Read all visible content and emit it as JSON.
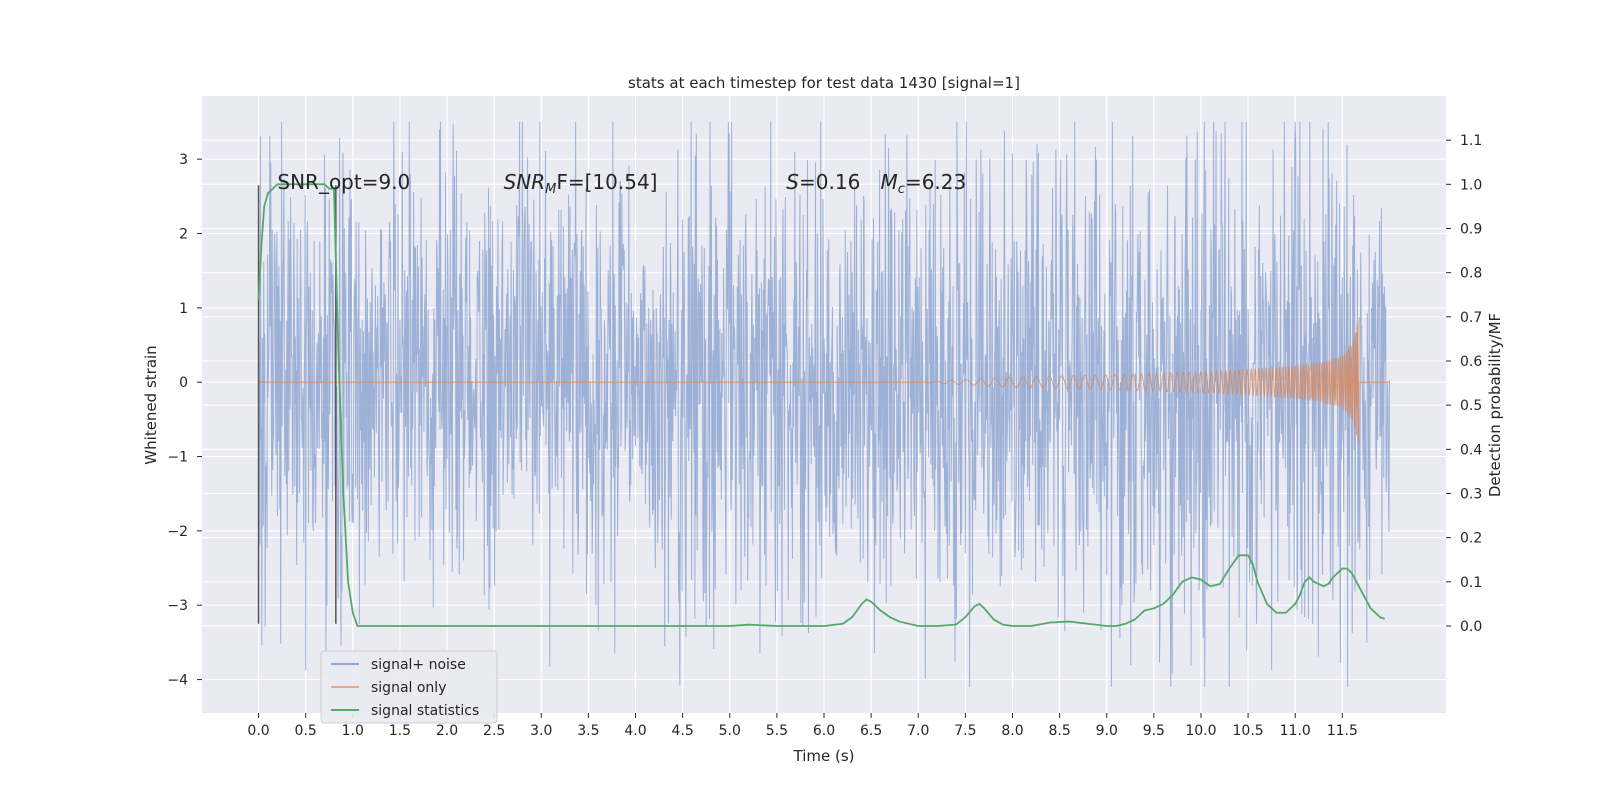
{
  "chart_data": {
    "type": "line",
    "title": "stats at each timestep for test data 1430 [signal=1]",
    "xlabel": "Time (s)",
    "ylabel": "Whitened strain",
    "y2label": "Detection probability/MF",
    "xlim": [
      -0.6,
      12.6
    ],
    "ylim": [
      -4.45,
      3.85
    ],
    "y2lim": [
      -0.197,
      1.2
    ],
    "x_ticks": [
      0.0,
      0.5,
      1.0,
      1.5,
      2.0,
      2.5,
      3.0,
      3.5,
      4.0,
      4.5,
      5.0,
      5.5,
      6.0,
      6.5,
      7.0,
      7.5,
      8.0,
      8.5,
      9.0,
      9.5,
      10.0,
      10.5,
      11.0,
      11.5
    ],
    "x_tick_labels": [
      "0.0",
      "0.5",
      "1.0",
      "1.5",
      "2.0",
      "2.5",
      "3.0",
      "3.5",
      "4.0",
      "4.5",
      "5.0",
      "5.5",
      "6.0",
      "6.5",
      "7.0",
      "7.5",
      "8.0",
      "8.5",
      "9.0",
      "9.5",
      "10.0",
      "10.5",
      "11.0",
      "11.5"
    ],
    "y_ticks": [
      -4,
      -3,
      -2,
      -1,
      0,
      1,
      2,
      3
    ],
    "y_tick_labels": [
      "−4",
      "−3",
      "−2",
      "−1",
      "0",
      "1",
      "2",
      "3"
    ],
    "y2_ticks": [
      0.0,
      0.1,
      0.2,
      0.3,
      0.4,
      0.5,
      0.6,
      0.7,
      0.8,
      0.9,
      1.0,
      1.1
    ],
    "y2_tick_labels": [
      "0.0",
      "0.1",
      "0.2",
      "0.3",
      "0.4",
      "0.5",
      "0.6",
      "0.7",
      "0.8",
      "0.9",
      "1.0",
      "1.1"
    ],
    "grid": true,
    "legend_position": "lower-left",
    "series": [
      {
        "name": "signal+ noise",
        "color": "#8fa6d1",
        "kind": "noise",
        "x_range": [
          0.0,
          12.0
        ],
        "y_range_approx": [
          -4.1,
          3.5
        ],
        "envelope_approx": {
          "x": [
            0,
            1,
            2,
            3,
            4,
            5,
            6,
            7,
            8,
            9,
            10,
            11,
            12
          ],
          "upper": [
            2.9,
            2.6,
            2.8,
            2.5,
            2.7,
            2.9,
            3.0,
            2.7,
            2.9,
            3.2,
            3.1,
            3.2,
            2.4
          ],
          "lower": [
            -2.5,
            -2.8,
            -2.7,
            -2.5,
            -2.9,
            -2.8,
            -2.9,
            -2.6,
            -2.8,
            -3.1,
            -3.4,
            -3.5,
            -2.5
          ]
        }
      },
      {
        "name": "signal only",
        "color": "#dd8452",
        "kind": "chirp",
        "x_start": 7.0,
        "x_end": 11.68,
        "envelope_approx": {
          "x": [
            7.0,
            8.0,
            9.0,
            10.0,
            10.5,
            11.0,
            11.3,
            11.5,
            11.6,
            11.68
          ],
          "amplitude": [
            0.0,
            0.07,
            0.1,
            0.14,
            0.17,
            0.22,
            0.27,
            0.35,
            0.5,
            0.88
          ]
        }
      },
      {
        "name": "signal statistics",
        "color": "#55a868",
        "axis": "right",
        "x": [
          0.0,
          0.03,
          0.06,
          0.1,
          0.15,
          0.2,
          0.3,
          0.4,
          0.5,
          0.6,
          0.7,
          0.75,
          0.8,
          0.85,
          0.9,
          0.95,
          1.0,
          1.05,
          1.1,
          1.2,
          1.5,
          2.0,
          2.2,
          2.5,
          2.8,
          3.0,
          3.5,
          4.0,
          4.5,
          5.0,
          5.2,
          5.5,
          6.0,
          6.2,
          6.3,
          6.4,
          6.45,
          6.5,
          6.6,
          6.7,
          6.8,
          7.0,
          7.2,
          7.4,
          7.5,
          7.6,
          7.65,
          7.7,
          7.8,
          7.9,
          8.0,
          8.2,
          8.4,
          8.6,
          8.8,
          9.0,
          9.1,
          9.2,
          9.3,
          9.4,
          9.5,
          9.6,
          9.7,
          9.8,
          9.9,
          10.0,
          10.1,
          10.2,
          10.3,
          10.4,
          10.45,
          10.5,
          10.55,
          10.6,
          10.7,
          10.8,
          10.9,
          11.0,
          11.05,
          11.1,
          11.15,
          11.2,
          11.3,
          11.35,
          11.4,
          11.5,
          11.55,
          11.6,
          11.7,
          11.8,
          11.9,
          11.95
        ],
        "values": [
          0.74,
          0.86,
          0.95,
          0.98,
          0.99,
          1.0,
          1.0,
          1.0,
          1.0,
          1.0,
          1.0,
          0.99,
          0.99,
          0.6,
          0.3,
          0.1,
          0.03,
          0.0,
          0.0,
          0.0,
          0.0,
          0.0,
          0.0,
          0.0,
          0.0,
          0.0,
          0.0,
          0.0,
          0.0,
          0.0,
          0.003,
          0.0,
          0.0,
          0.005,
          0.02,
          0.05,
          0.06,
          0.055,
          0.035,
          0.02,
          0.01,
          0.0,
          0.0,
          0.003,
          0.02,
          0.045,
          0.05,
          0.04,
          0.015,
          0.003,
          0.0,
          0.0,
          0.008,
          0.01,
          0.005,
          0.0,
          0.0,
          0.005,
          0.015,
          0.035,
          0.04,
          0.05,
          0.07,
          0.1,
          0.11,
          0.105,
          0.09,
          0.095,
          0.13,
          0.16,
          0.16,
          0.16,
          0.14,
          0.1,
          0.05,
          0.03,
          0.03,
          0.05,
          0.07,
          0.1,
          0.11,
          0.1,
          0.09,
          0.095,
          0.11,
          0.13,
          0.13,
          0.12,
          0.08,
          0.04,
          0.02,
          0.016
        ]
      }
    ],
    "vertical_lines": [
      {
        "x": 0.0,
        "y_from": -3.25,
        "y_to": 2.65,
        "color": "#555555"
      },
      {
        "x": 0.82,
        "y_from": -3.25,
        "y_to": 2.65,
        "color": "#555555"
      }
    ],
    "annotations": [
      {
        "text": "SNR_opt=9.0",
        "x": 0.2,
        "y": 2.6
      },
      {
        "text": "SNR",
        "sub": "M",
        "after": "F=[10.54]",
        "italic": true,
        "x": 2.6,
        "y": 2.6
      },
      {
        "text": "S",
        "after": "=0.16",
        "italic": true,
        "x": 5.6,
        "y": 2.6
      },
      {
        "text": "M",
        "sub": "c",
        "after": "=6.23",
        "italic": true,
        "x": 6.6,
        "y": 2.6
      }
    ],
    "legend": [
      {
        "label": "signal+ noise",
        "color": "#8fa6d1"
      },
      {
        "label": "signal only",
        "color": "#e8a88a"
      },
      {
        "label": "signal statistics",
        "color": "#55a868"
      }
    ]
  }
}
